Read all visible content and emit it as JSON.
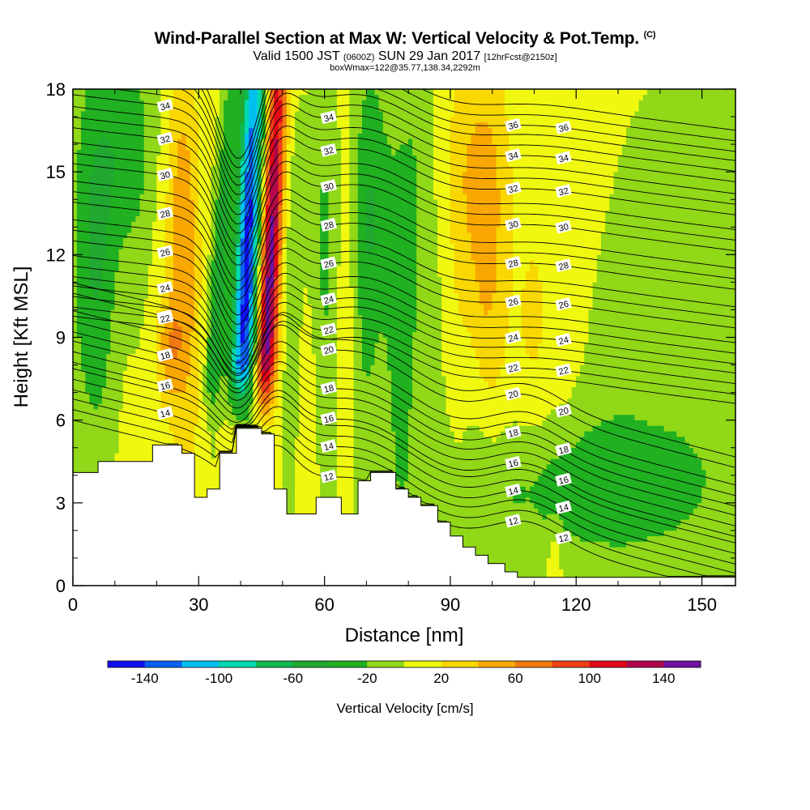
{
  "header": {
    "title": "Wind-Parallel Section at Max W: Vertical Velocity & Pot.Temp.",
    "copyright": "(C)",
    "valid_pre": "Valid 1500 JST",
    "valid_z": "(0600Z)",
    "valid_date": "SUN 29 Jan 2017",
    "valid_fcst": "[12hrFcst@2150z]",
    "box_line": "boxWmax=122@35.77,138.34,2292m"
  },
  "chart_data": {
    "type": "heatmap",
    "xlabel": "Distance [nm]",
    "ylabel": "Height [Kft MSL]",
    "xlim": [
      0,
      158
    ],
    "ylim": [
      0,
      18
    ],
    "x_ticks": [
      "0",
      "30",
      "60",
      "90",
      "120",
      "150"
    ],
    "y_ticks": [
      "0",
      "3",
      "6",
      "9",
      "12",
      "15",
      "18"
    ],
    "colorbar": {
      "label": "Vertical Velocity [cm/s]",
      "tick_labels": [
        "-140",
        "-100",
        "-60",
        "-20",
        "20",
        "60",
        "100",
        "140"
      ],
      "levels": [
        -160,
        -140,
        -120,
        -100,
        -80,
        -60,
        -40,
        -20,
        0,
        20,
        40,
        60,
        80,
        100,
        120,
        140,
        160
      ],
      "colors": [
        "#1010f0",
        "#0a60f0",
        "#00c0f0",
        "#00d8b0",
        "#10b850",
        "#20a830",
        "#20b020",
        "#90d818",
        "#f0f810",
        "#f8d800",
        "#f8a800",
        "#f07810",
        "#f04018",
        "#e00818",
        "#b00848",
        "#7010a0"
      ]
    },
    "terrain_kft": [
      [
        0,
        4.1
      ],
      [
        6,
        4.1
      ],
      [
        6,
        4.5
      ],
      [
        19,
        4.5
      ],
      [
        19,
        5.1
      ],
      [
        26,
        5.1
      ],
      [
        26,
        4.8
      ],
      [
        29,
        4.8
      ],
      [
        29,
        3.2
      ],
      [
        32,
        3.2
      ],
      [
        32,
        3.5
      ],
      [
        35,
        3.5
      ],
      [
        35,
        4.8
      ],
      [
        39,
        4.8
      ],
      [
        39,
        5.7
      ],
      [
        45,
        5.7
      ],
      [
        45,
        5.5
      ],
      [
        48,
        5.5
      ],
      [
        48,
        3.5
      ],
      [
        51,
        3.5
      ],
      [
        51,
        2.6
      ],
      [
        58,
        2.6
      ],
      [
        58,
        3.2
      ],
      [
        64,
        3.2
      ],
      [
        64,
        2.6
      ],
      [
        68,
        2.6
      ],
      [
        68,
        3.8
      ],
      [
        71,
        3.8
      ],
      [
        71,
        4.1
      ],
      [
        77,
        4.1
      ],
      [
        77,
        3.5
      ],
      [
        80,
        3.5
      ],
      [
        80,
        3.2
      ],
      [
        83,
        3.2
      ],
      [
        83,
        2.9
      ],
      [
        87,
        2.9
      ],
      [
        87,
        2.3
      ],
      [
        90,
        2.3
      ],
      [
        90,
        1.8
      ],
      [
        93,
        1.8
      ],
      [
        93,
        1.4
      ],
      [
        96,
        1.4
      ],
      [
        96,
        1.1
      ],
      [
        99,
        1.1
      ],
      [
        99,
        0.8
      ],
      [
        103,
        0.8
      ],
      [
        103,
        0.5
      ],
      [
        106,
        0.5
      ],
      [
        106,
        0.3
      ],
      [
        158,
        0.3
      ]
    ],
    "w_features_cms": [
      {
        "x": 42,
        "z": 11,
        "w": -140
      },
      {
        "x": 48,
        "z": 11,
        "w": 120
      },
      {
        "x": 27,
        "z": 12,
        "w": 60
      },
      {
        "x": 98,
        "z": 15,
        "w": 40
      },
      {
        "x": 5,
        "z": 12,
        "w": -40
      },
      {
        "x": 73,
        "z": 14,
        "w": -40
      },
      {
        "x": 82,
        "z": 13,
        "w": -20
      }
    ],
    "theta_contours": [
      {
        "label": "12",
        "z": 2.8
      },
      {
        "label": "14",
        "z": 3.9
      },
      {
        "label": "16",
        "z": 4.9
      },
      {
        "label": "18",
        "z": 6.0
      },
      {
        "label": "20",
        "z": 7.4
      },
      {
        "label": "22",
        "z": 8.5
      },
      {
        "label": "24",
        "z": 9.6
      },
      {
        "label": "26",
        "z": 10.9
      },
      {
        "label": "28",
        "z": 12.3
      },
      {
        "label": "30",
        "z": 13.7
      },
      {
        "label": "32",
        "z": 15.0
      },
      {
        "label": "34",
        "z": 16.2
      },
      {
        "label": "36",
        "z": 17.3
      }
    ]
  }
}
